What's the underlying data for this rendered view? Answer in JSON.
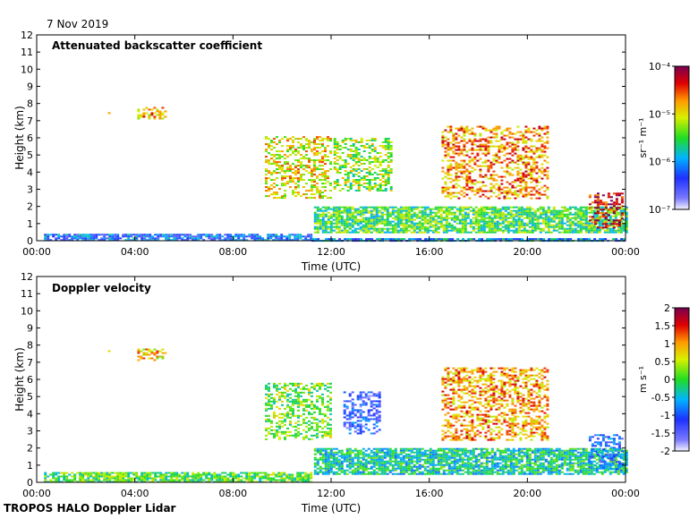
{
  "date": "7 Nov 2019",
  "footer": "TROPOS HALO Doppler Lidar",
  "panels": [
    {
      "title": "Attenuated backscatter coefficient",
      "xlabel": "Time (UTC)",
      "ylabel": "Height (km)",
      "colorbar": {
        "unit": "sr⁻¹ m⁻¹",
        "scale": "log",
        "labels": [
          "10⁻⁷",
          "10⁻⁶",
          "10⁻⁵",
          "10⁻⁴"
        ]
      }
    },
    {
      "title": "Doppler velocity",
      "xlabel": "Time (UTC)",
      "ylabel": "Height (km)",
      "colorbar": {
        "unit": "m s⁻¹",
        "scale": "linear",
        "labels": [
          "-2",
          "-1.5",
          "-1",
          "-0.5",
          "0",
          "0.5",
          "1",
          "1.5",
          "2"
        ]
      }
    }
  ],
  "chart_data": [
    {
      "type": "heatmap",
      "title": "Attenuated backscatter coefficient",
      "xlabel": "Time (UTC)",
      "ylabel": "Height (km)",
      "x_ticks": [
        "00:00",
        "04:00",
        "08:00",
        "12:00",
        "16:00",
        "20:00",
        "00:00"
      ],
      "xlim_hours": [
        0,
        24
      ],
      "ylim": [
        0,
        12
      ],
      "y_ticks": [
        0,
        1,
        2,
        3,
        4,
        5,
        6,
        7,
        8,
        9,
        10,
        11,
        12
      ],
      "colorbar": {
        "scale": "log",
        "range": [
          1e-07,
          0.0001
        ],
        "unit": "sr-1 m-1"
      },
      "features": [
        {
          "name": "boundary layer",
          "t_start": 0.3,
          "t_end": 11.2,
          "h_bottom": 0,
          "h_top": 0.4,
          "log_value": -6.2
        },
        {
          "name": "boundary layer",
          "t_start": 11.2,
          "t_end": 24,
          "h_bottom": 0,
          "h_top": 0.15,
          "log_value": -6.0
        },
        {
          "name": "aerosol layer",
          "t_start": 11.3,
          "t_end": 24,
          "h_bottom": 0.5,
          "h_top": 2.0,
          "log_value": -5.5
        },
        {
          "name": "cloud",
          "t_start": 2.9,
          "t_end": 3.0,
          "h_bottom": 7.4,
          "h_top": 7.7,
          "log_value": -4.8
        },
        {
          "name": "cloud",
          "t_start": 4.1,
          "t_end": 5.3,
          "h_bottom": 7.1,
          "h_top": 7.8,
          "log_value": -4.8
        },
        {
          "name": "cloud",
          "t_start": 9.3,
          "t_end": 12.0,
          "h_bottom": 2.5,
          "h_top": 6.1,
          "log_value": -5.0
        },
        {
          "name": "cloud",
          "t_start": 12.1,
          "t_end": 14.5,
          "h_bottom": 2.9,
          "h_top": 6.0,
          "log_value": -5.3
        },
        {
          "name": "cloud",
          "t_start": 16.5,
          "t_end": 20.8,
          "h_bottom": 2.5,
          "h_top": 6.7,
          "log_value": -4.7
        },
        {
          "name": "cloud",
          "t_start": 22.5,
          "t_end": 23.9,
          "h_bottom": 0.8,
          "h_top": 2.8,
          "log_value": -4.3
        }
      ]
    },
    {
      "type": "heatmap",
      "title": "Doppler velocity",
      "xlabel": "Time (UTC)",
      "ylabel": "Height (km)",
      "x_ticks": [
        "00:00",
        "04:00",
        "08:00",
        "12:00",
        "16:00",
        "20:00",
        "00:00"
      ],
      "xlim_hours": [
        0,
        24
      ],
      "ylim": [
        0,
        12
      ],
      "y_ticks": [
        0,
        1,
        2,
        3,
        4,
        5,
        6,
        7,
        8,
        9,
        10,
        11,
        12
      ],
      "colorbar": {
        "scale": "linear",
        "range": [
          -2,
          2
        ],
        "unit": "m s-1"
      },
      "features": [
        {
          "name": "boundary layer",
          "t_start": 0.3,
          "t_end": 11.2,
          "h_bottom": 0,
          "h_top": 0.6,
          "value": 0.1
        },
        {
          "name": "aerosol layer",
          "t_start": 11.3,
          "t_end": 24,
          "h_bottom": 0.5,
          "h_top": 2.0,
          "value": -0.3
        },
        {
          "name": "cloud",
          "t_start": 2.9,
          "t_end": 3.0,
          "h_bottom": 7.4,
          "h_top": 7.7,
          "value": 0.3
        },
        {
          "name": "cloud",
          "t_start": 4.1,
          "t_end": 5.3,
          "h_bottom": 7.1,
          "h_top": 7.8,
          "value": 0.8
        },
        {
          "name": "cloud",
          "t_start": 9.3,
          "t_end": 12.0,
          "h_bottom": 2.5,
          "h_top": 5.8,
          "value": 0.2
        },
        {
          "name": "cloud",
          "t_start": 12.5,
          "t_end": 14.0,
          "h_bottom": 2.8,
          "h_top": 5.3,
          "value": -1.2
        },
        {
          "name": "cloud",
          "t_start": 16.5,
          "t_end": 20.8,
          "h_bottom": 2.5,
          "h_top": 6.7,
          "value": 1.0
        },
        {
          "name": "cloud",
          "t_start": 22.5,
          "t_end": 23.9,
          "h_bottom": 0.8,
          "h_top": 2.8,
          "value": -1.0
        }
      ]
    }
  ]
}
